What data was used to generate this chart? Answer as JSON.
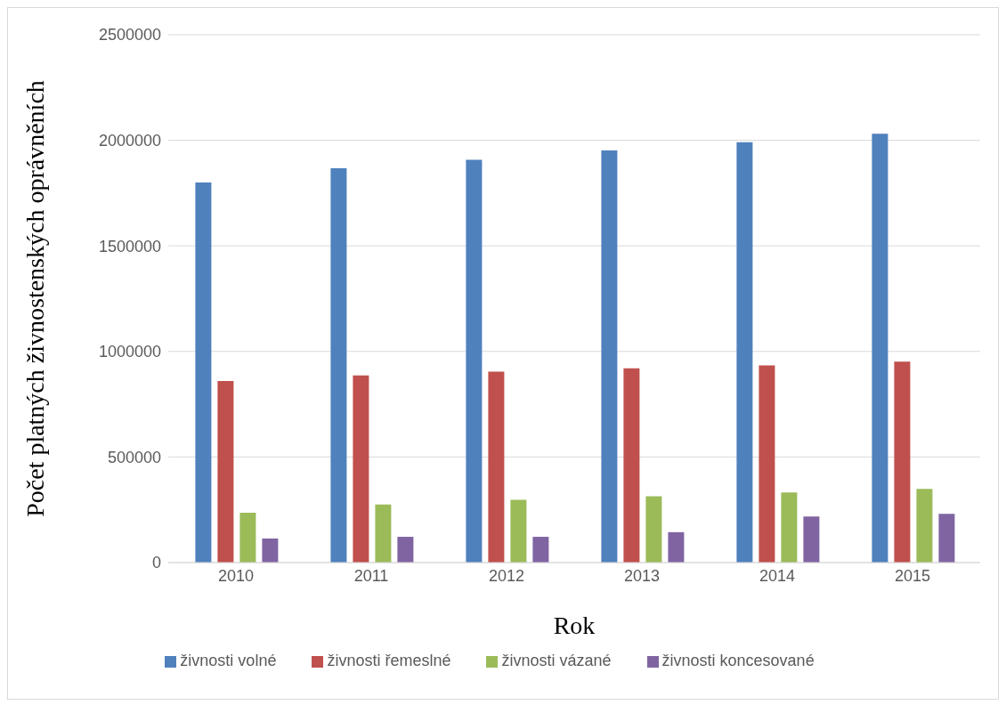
{
  "chart_data": {
    "type": "bar",
    "xlabel": "Rok",
    "ylabel": "Počet platných živnostenských oprávněních",
    "categories": [
      "2010",
      "2011",
      "2012",
      "2013",
      "2014",
      "2015"
    ],
    "series": [
      {
        "name": "živnosti volné",
        "color": "#4f81bd",
        "values": [
          1800000,
          1868000,
          1908000,
          1952000,
          1991000,
          2031000
        ]
      },
      {
        "name": "živnosti řemeslné",
        "color": "#c0504d",
        "values": [
          860000,
          886000,
          904000,
          920000,
          934000,
          952000
        ]
      },
      {
        "name": "živnosti vázané",
        "color": "#9bbb59",
        "values": [
          236000,
          275000,
          297000,
          314000,
          332000,
          349000
        ]
      },
      {
        "name": "živnosti koncesované",
        "color": "#8064a2",
        "values": [
          114000,
          122000,
          122000,
          144000,
          218000,
          231000
        ]
      }
    ],
    "ylim": [
      0,
      2500000
    ],
    "yticks": [
      0,
      500000,
      1000000,
      1500000,
      2000000,
      2500000
    ],
    "grid": "y",
    "legend": "bottom"
  }
}
